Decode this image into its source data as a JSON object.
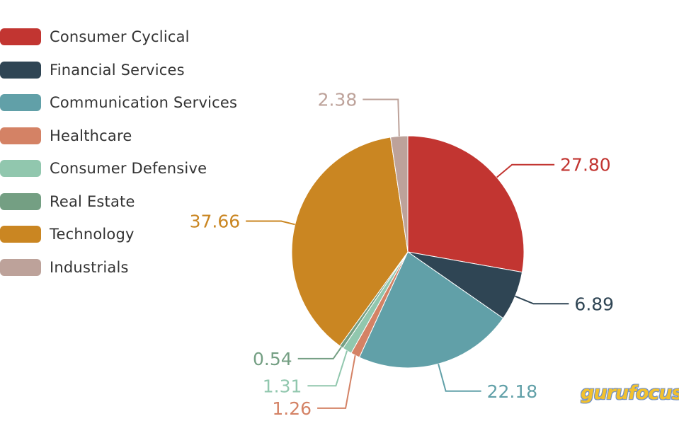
{
  "chart_data": {
    "type": "pie",
    "title": "",
    "categories": [
      "Consumer Cyclical",
      "Financial Services",
      "Communication Services",
      "Healthcare",
      "Consumer Defensive",
      "Real Estate",
      "Technology",
      "Industrials"
    ],
    "values": [
      27.8,
      6.89,
      22.18,
      1.26,
      1.31,
      0.54,
      37.66,
      2.38
    ],
    "value_labels": [
      "27.80",
      "6.89",
      "22.18",
      "1.26",
      "1.31",
      "0.54",
      "37.66",
      "2.38"
    ],
    "colors": [
      "#c23531",
      "#2f4554",
      "#61a0a8",
      "#d48265",
      "#91c7ae",
      "#749f83",
      "#ca8622",
      "#bda29a"
    ],
    "legend_position": "top-left"
  },
  "watermark": "gurufocus"
}
